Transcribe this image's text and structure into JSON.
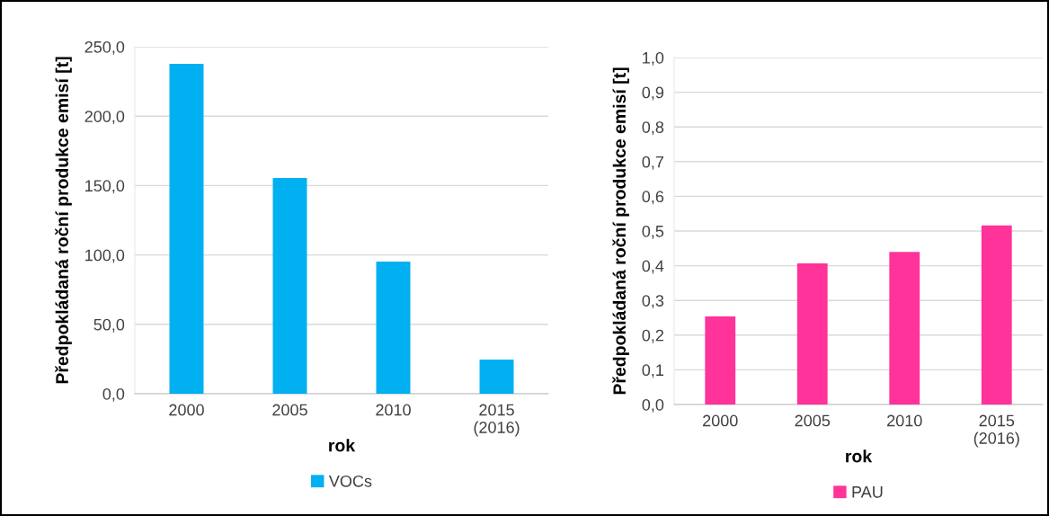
{
  "chart_data": [
    {
      "type": "bar",
      "categories": [
        "2000",
        "2005",
        "2010",
        "2015\n(2016)"
      ],
      "xlabel": "rok",
      "ylabel": "Předpokládaná roční produkce emisí [t]",
      "series": [
        {
          "name": "VOCs",
          "color": "#00b0f0",
          "values": [
            237.7,
            155.4,
            95.2,
            24.6
          ]
        }
      ],
      "ylim": [
        0,
        250
      ],
      "yticks": [
        {
          "value": 0,
          "label": "0,0"
        },
        {
          "value": 50,
          "label": "50,0"
        },
        {
          "value": 100,
          "label": "100,0"
        },
        {
          "value": 150,
          "label": "150,0"
        },
        {
          "value": 200,
          "label": "200,0"
        },
        {
          "value": 250,
          "label": "250,0"
        }
      ],
      "grid": "y",
      "legend": "bottom"
    },
    {
      "type": "bar",
      "categories": [
        "2000",
        "2005",
        "2010",
        "2015\n(2016)"
      ],
      "xlabel": "rok",
      "ylabel": "Předpokládaná roční produkce emisí [t]",
      "series": [
        {
          "name": "PAU",
          "color": "#ff3399",
          "values": [
            0.254,
            0.407,
            0.44,
            0.516
          ]
        }
      ],
      "ylim": [
        0,
        1
      ],
      "yticks": [
        {
          "value": 0,
          "label": "0,0"
        },
        {
          "value": 0.1,
          "label": "0,1"
        },
        {
          "value": 0.2,
          "label": "0,2"
        },
        {
          "value": 0.3,
          "label": "0,3"
        },
        {
          "value": 0.4,
          "label": "0,4"
        },
        {
          "value": 0.5,
          "label": "0,5"
        },
        {
          "value": 0.6,
          "label": "0,6"
        },
        {
          "value": 0.7,
          "label": "0,7"
        },
        {
          "value": 0.8,
          "label": "0,8"
        },
        {
          "value": 0.9,
          "label": "0,9"
        },
        {
          "value": 1.0,
          "label": "1,0"
        }
      ],
      "grid": "y",
      "legend": "bottom"
    }
  ]
}
